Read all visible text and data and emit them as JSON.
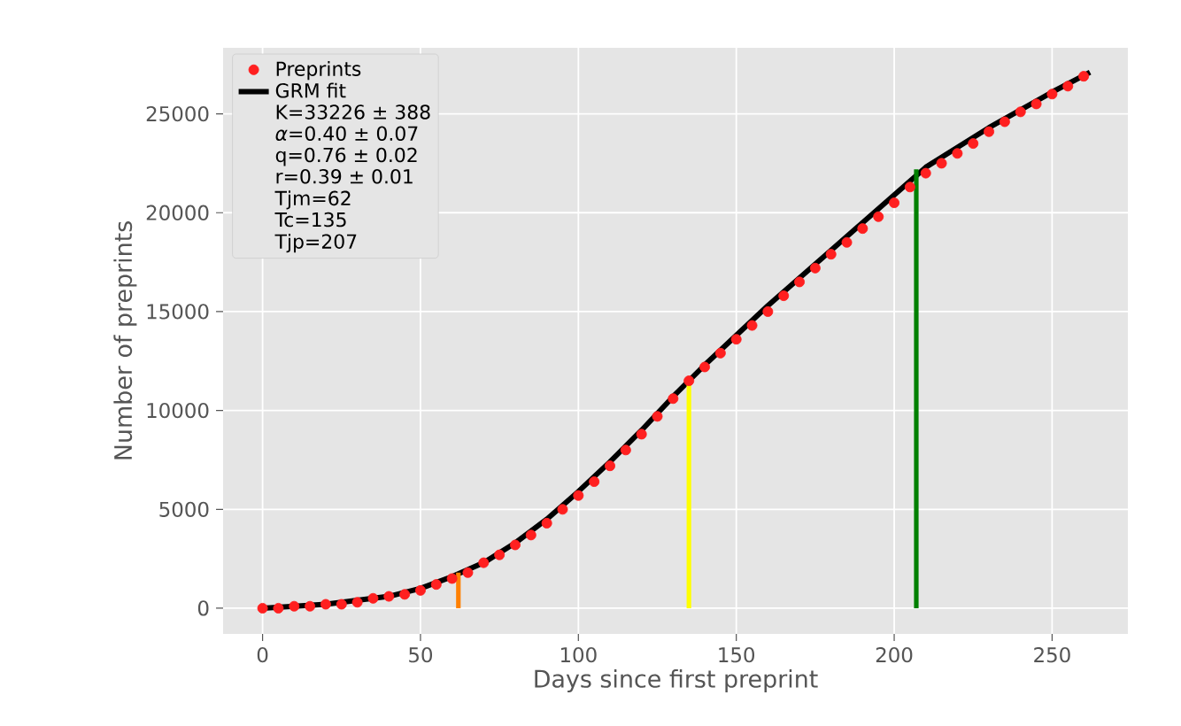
{
  "chart_data": {
    "type": "scatter",
    "xlabel": "Days since first preprint",
    "ylabel": "Number of preprints",
    "xlim": [
      -12.5,
      274
    ],
    "ylim": [
      -1300,
      28340
    ],
    "xticks": [
      0,
      50,
      100,
      150,
      200,
      250
    ],
    "yticks": [
      0,
      5000,
      10000,
      15000,
      20000,
      25000
    ],
    "grid": true,
    "legend": "top left",
    "series": [
      {
        "name": "Preprints",
        "marker": "circle",
        "color": "#ff2020",
        "x": [
          0,
          5,
          10,
          15,
          20,
          25,
          30,
          35,
          40,
          45,
          50,
          55,
          60,
          65,
          70,
          75,
          80,
          85,
          90,
          95,
          100,
          105,
          110,
          115,
          120,
          125,
          130,
          135,
          140,
          145,
          150,
          155,
          160,
          165,
          170,
          175,
          180,
          185,
          190,
          195,
          200,
          205,
          210,
          215,
          220,
          225,
          230,
          235,
          240,
          245,
          250,
          255,
          260
        ],
        "values": [
          0,
          0,
          100,
          100,
          200,
          200,
          300,
          500,
          600,
          700,
          900,
          1200,
          1500,
          1800,
          2300,
          2700,
          3200,
          3700,
          4300,
          5000,
          5700,
          6400,
          7200,
          8000,
          8800,
          9700,
          10600,
          11500,
          12200,
          12900,
          13600,
          14300,
          15000,
          15800,
          16500,
          17200,
          17900,
          18500,
          19200,
          19800,
          20500,
          21300,
          22000,
          22500,
          23000,
          23500,
          24100,
          24600,
          25100,
          25500,
          26000,
          26400,
          26900
        ]
      },
      {
        "name": "GRM fit",
        "type": "line",
        "marker": "none",
        "line_style": "solid",
        "color": "#000000",
        "x": [
          0,
          10,
          20,
          30,
          40,
          50,
          60,
          70,
          80,
          90,
          100,
          110,
          120,
          130,
          140,
          150,
          160,
          170,
          180,
          190,
          200,
          210,
          220,
          230,
          240,
          250,
          262
        ],
        "values": [
          0,
          100,
          200,
          400,
          600,
          1000,
          1600,
          2300,
          3300,
          4500,
          5900,
          7400,
          9000,
          10700,
          12300,
          13800,
          15300,
          16700,
          18100,
          19500,
          20900,
          22300,
          23300,
          24300,
          25200,
          26100,
          27100
        ]
      },
      {
        "type": "line",
        "marker": "none",
        "line_style": "solid",
        "color": "#ff8000",
        "x": [
          62,
          62
        ],
        "values": [
          0,
          1800
        ]
      },
      {
        "type": "line",
        "marker": "none",
        "line_style": "solid",
        "color": "#ffff00",
        "x": [
          135,
          135
        ],
        "values": [
          0,
          11700
        ]
      },
      {
        "type": "line",
        "marker": "none",
        "line_style": "solid",
        "color": "#008000",
        "x": [
          207,
          207
        ],
        "values": [
          0,
          22200
        ]
      }
    ],
    "annotations": [
      "K=33226 ± 388",
      "*α*=0.40 ± 0.07",
      "q=0.76 ± 0.02",
      "r=0.39 ± 0.01",
      "Tjm=62",
      "Tc=135",
      "Tjp=207"
    ]
  }
}
